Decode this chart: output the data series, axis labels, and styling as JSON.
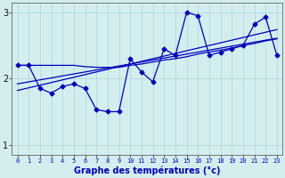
{
  "xlabel": "Graphe des températures (°c)",
  "x": [
    0,
    1,
    2,
    3,
    4,
    5,
    6,
    7,
    8,
    9,
    10,
    11,
    12,
    13,
    14,
    15,
    16,
    17,
    18,
    19,
    20,
    21,
    22,
    23
  ],
  "y_main": [
    2.2,
    2.2,
    1.85,
    1.78,
    1.88,
    1.92,
    1.85,
    1.53,
    1.5,
    1.5,
    2.3,
    2.1,
    1.95,
    2.45,
    2.35,
    3.0,
    2.95,
    2.35,
    2.4,
    2.45,
    2.5,
    2.82,
    2.93,
    2.35
  ],
  "y_trend_top": [
    2.2,
    2.2,
    2.2,
    2.2,
    2.2,
    2.2,
    2.18,
    2.17,
    2.17,
    2.17,
    2.2,
    2.22,
    2.25,
    2.28,
    2.3,
    2.33,
    2.37,
    2.4,
    2.43,
    2.46,
    2.5,
    2.53,
    2.57,
    2.6
  ],
  "y_trend_mid": [
    1.92,
    1.95,
    1.98,
    2.01,
    2.04,
    2.07,
    2.1,
    2.13,
    2.16,
    2.19,
    2.22,
    2.25,
    2.28,
    2.31,
    2.34,
    2.37,
    2.4,
    2.43,
    2.46,
    2.49,
    2.52,
    2.55,
    2.58,
    2.61
  ],
  "y_trend_bot": [
    1.82,
    1.86,
    1.9,
    1.94,
    1.98,
    2.02,
    2.06,
    2.1,
    2.14,
    2.18,
    2.22,
    2.26,
    2.3,
    2.34,
    2.38,
    2.42,
    2.46,
    2.5,
    2.54,
    2.58,
    2.62,
    2.66,
    2.7,
    2.74
  ],
  "line_color": "#0000bb",
  "bg_color": "#d4eef0",
  "grid_color": "#aad4d8",
  "ylim": [
    0.85,
    3.15
  ],
  "xlim": [
    -0.5,
    23.5
  ],
  "yticks": [
    1,
    2,
    3
  ],
  "xticks": [
    0,
    1,
    2,
    3,
    4,
    5,
    6,
    7,
    8,
    9,
    10,
    11,
    12,
    13,
    14,
    15,
    16,
    17,
    18,
    19,
    20,
    21,
    22,
    23
  ]
}
